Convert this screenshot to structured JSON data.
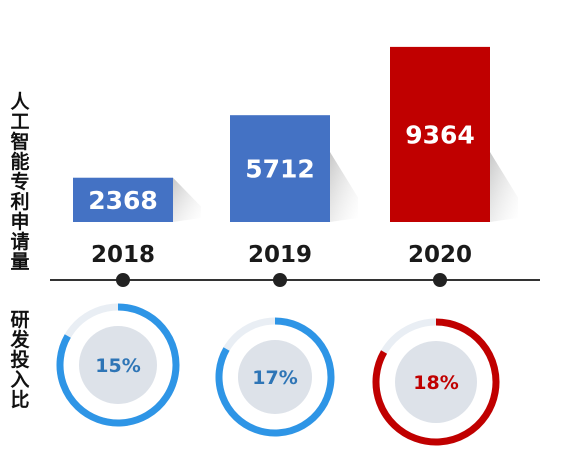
{
  "chart_data": [
    {
      "type": "bar",
      "ylabel": "人工智能专利申请量",
      "categories": [
        "2018",
        "2019",
        "2020"
      ],
      "values": [
        2368,
        5712,
        9364
      ],
      "bar_colors": [
        "#4472c4",
        "#4472c4",
        "#c00000"
      ],
      "value_label_color": "#ffffff",
      "ylim": [
        0,
        10000
      ]
    },
    {
      "type": "pie",
      "ylabel": "研发投入比",
      "categories": [
        "2018",
        "2019",
        "2020"
      ],
      "values": [
        15,
        17,
        18
      ],
      "labels": [
        "15%",
        "17%",
        "18%"
      ],
      "ring_colors": [
        "#2e95e6",
        "#2e95e6",
        "#c00000"
      ],
      "label_colors": [
        "#2e75b6",
        "#2e75b6",
        "#c00000"
      ],
      "track_color": "#e9eef4",
      "disc_color": "#dde2e9"
    }
  ]
}
